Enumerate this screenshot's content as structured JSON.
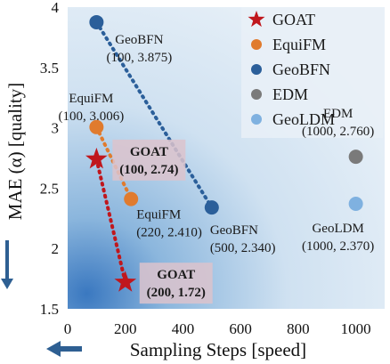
{
  "chart_data": {
    "type": "scatter",
    "xlabel": "Sampling Steps [speed]",
    "ylabel": "MAE (α) [quality]",
    "xlim": [
      0,
      1100
    ],
    "ylim": [
      1.5,
      4.0
    ],
    "xticks": [
      0,
      200,
      400,
      600,
      800,
      1000
    ],
    "yticks": [
      1.5,
      2.0,
      2.5,
      3.0,
      3.5,
      4.0
    ],
    "xtick_labels": [
      "0",
      "200",
      "400",
      "600",
      "800",
      "1000"
    ],
    "ytick_labels": [
      "1.5",
      "2",
      "2.5",
      "3",
      "3.5",
      "4"
    ],
    "grid": false,
    "legend_position": "top-right",
    "series": [
      {
        "name": "GOAT",
        "marker": "star",
        "color": "#c0171d",
        "points": [
          {
            "x": 100,
            "y": 2.74,
            "name": "GOAT",
            "coord": "(100, 2.74)"
          },
          {
            "x": 200,
            "y": 1.72,
            "name": "GOAT",
            "coord": "(200, 1.72)"
          }
        ]
      },
      {
        "name": "EquiFM",
        "marker": "circle",
        "color": "#e07b2e",
        "points": [
          {
            "x": 100,
            "y": 3.006,
            "name": "EquiFM",
            "coord": "(100, 3.006)"
          },
          {
            "x": 220,
            "y": 2.41,
            "name": "EquiFM",
            "coord": "(220, 2.410)"
          }
        ]
      },
      {
        "name": "GeoBFN",
        "marker": "circle",
        "color": "#2b5f9a",
        "points": [
          {
            "x": 100,
            "y": 3.875,
            "name": "GeoBFN",
            "coord": "(100, 3.875)"
          },
          {
            "x": 500,
            "y": 2.34,
            "name": "GeoBFN",
            "coord": "(500, 2.340)"
          }
        ]
      },
      {
        "name": "EDM",
        "marker": "circle",
        "color": "#7a7a7a",
        "points": [
          {
            "x": 1000,
            "y": 2.76,
            "name": "EDM",
            "coord": "(1000, 2.760)"
          }
        ]
      },
      {
        "name": "GeoLDM",
        "marker": "circle",
        "color": "#7fb1e0",
        "points": [
          {
            "x": 1000,
            "y": 2.37,
            "name": "GeoLDM",
            "coord": "(1000, 2.370)"
          }
        ]
      }
    ],
    "connectors": [
      {
        "series": "GOAT",
        "color": "#c0171d"
      },
      {
        "series": "EquiFM",
        "color": "#e07b2e"
      },
      {
        "series": "GeoBFN",
        "color": "#2b5f9a"
      }
    ]
  }
}
